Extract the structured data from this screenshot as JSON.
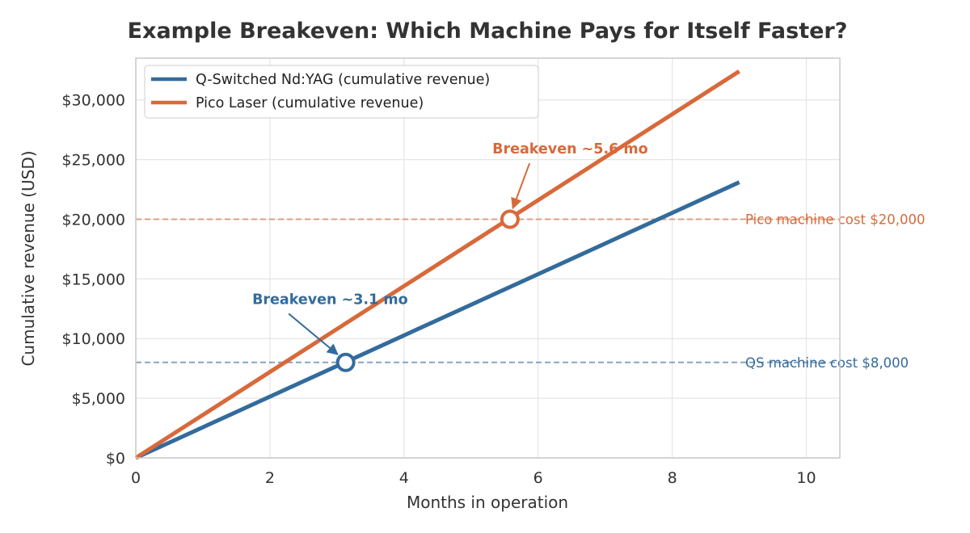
{
  "chart_data": {
    "type": "line",
    "title": "Example Breakeven: Which Machine Pays for Itself Faster?",
    "xlabel": "Months in operation",
    "ylabel": "Cumulative revenue (USD)",
    "xlim": [
      0,
      10.5
    ],
    "ylim": [
      0,
      33500
    ],
    "xticks": [
      0,
      2,
      4,
      6,
      8,
      10
    ],
    "yticks": [
      0,
      5000,
      10000,
      15000,
      20000,
      25000,
      30000
    ],
    "ytick_labels": [
      "$0",
      "$5,000",
      "$10,000",
      "$15,000",
      "$20,000",
      "$25,000",
      "$30,000"
    ],
    "grid": true,
    "legend_position": "upper-left",
    "series": [
      {
        "name": "Q-Switched Nd:YAG (cumulative revenue)",
        "color": "#336b9c",
        "x": [
          0,
          9
        ],
        "y": [
          0,
          23100
        ]
      },
      {
        "name": "Pico Laser (cumulative revenue)",
        "color": "#d8693a",
        "x": [
          0,
          9
        ],
        "y": [
          0,
          32400
        ]
      }
    ],
    "reference_lines": [
      {
        "y": 20000,
        "label": "Pico machine cost $20,000",
        "color": "#d8693a"
      },
      {
        "y": 8000,
        "label": "QS machine cost $8,000",
        "color": "#336b9c"
      }
    ],
    "annotations": [
      {
        "text": "Breakeven ~5.6 mo",
        "point": [
          5.58,
          20000
        ],
        "text_anchor_at": [
          5.8,
          25500
        ],
        "color": "#d8693a"
      },
      {
        "text": "Breakeven ~3.1 mo",
        "point": [
          3.13,
          8000
        ],
        "text_anchor_at": [
          2.4,
          12900
        ],
        "color": "#336b9c"
      }
    ]
  }
}
